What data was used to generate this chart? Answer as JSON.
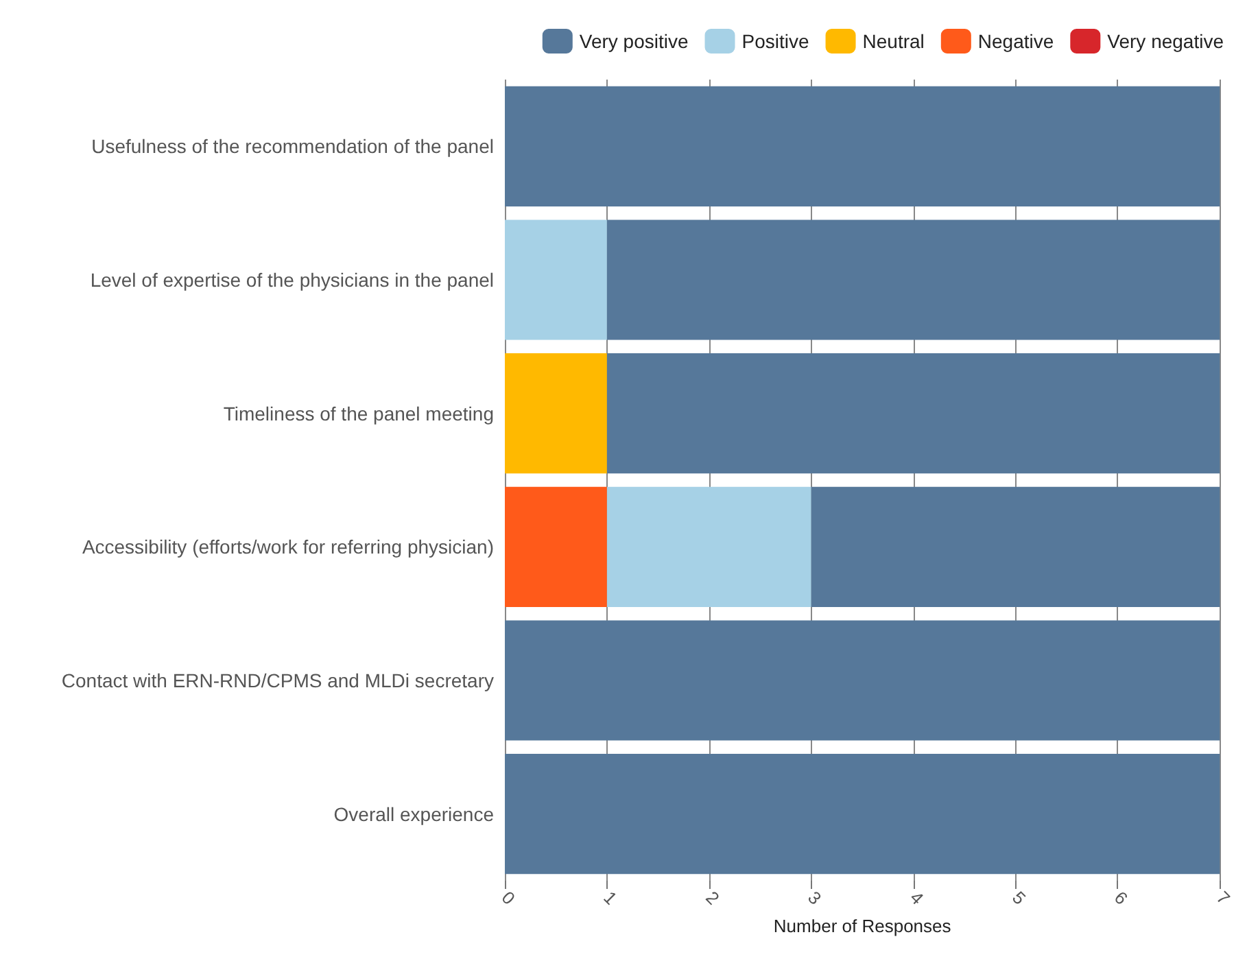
{
  "chart_data": {
    "type": "bar",
    "orientation": "horizontal",
    "stacked": true,
    "xlabel": "Number of Responses",
    "categories": [
      "Usefulness of the recommendation of the panel",
      "Level of expertise of the physicians in the panel",
      "Timeliness of the panel meeting",
      "Accessibility (efforts/work for referring physician)",
      "Contact with ERN-RND/CPMS and MLDi secretary",
      "Overall experience"
    ],
    "series": [
      {
        "name": "Very negative",
        "color": "#d7262b",
        "values": [
          0,
          0,
          0,
          0,
          0,
          0
        ]
      },
      {
        "name": "Negative",
        "color": "#ff5a1a",
        "values": [
          0,
          0,
          0,
          1,
          0,
          0
        ]
      },
      {
        "name": "Neutral",
        "color": "#ffb900",
        "values": [
          0,
          0,
          1,
          0,
          0,
          0
        ]
      },
      {
        "name": "Positive",
        "color": "#a6d1e6",
        "values": [
          0,
          1,
          0,
          2,
          0,
          0
        ]
      },
      {
        "name": "Very positive",
        "color": "#56789a",
        "values": [
          7,
          6,
          6,
          4,
          7,
          7
        ]
      }
    ],
    "xlim": [
      0,
      7
    ],
    "xticks": [
      0,
      1,
      2,
      3,
      4,
      5,
      6,
      7
    ],
    "grid": "x",
    "legend": "top right"
  }
}
